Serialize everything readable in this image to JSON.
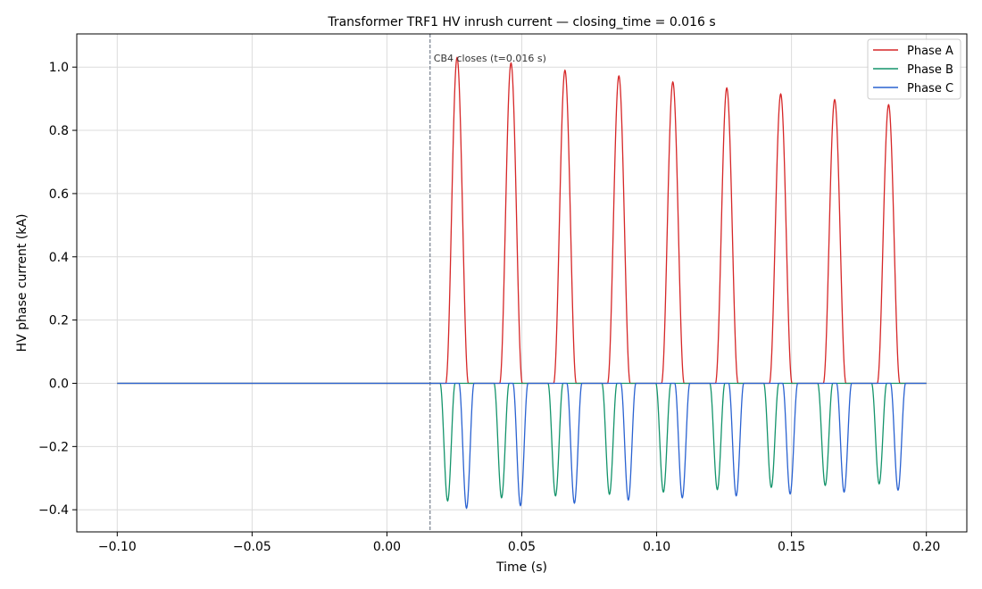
{
  "chart_data": {
    "type": "line",
    "title": "Transformer TRF1 HV inrush current — closing_time = 0.016 s",
    "xlabel": "Time (s)",
    "ylabel": "HV phase current (kA)",
    "xlim": [
      -0.115,
      0.215
    ],
    "ylim": [
      -0.47,
      1.105
    ],
    "xticks": [
      -0.1,
      -0.05,
      0.0,
      0.05,
      0.1,
      0.15,
      0.2
    ],
    "xtick_labels": [
      "−0.10",
      "−0.05",
      "0.00",
      "0.05",
      "0.10",
      "0.15",
      "0.20"
    ],
    "yticks": [
      -0.4,
      -0.2,
      0.0,
      0.2,
      0.4,
      0.6,
      0.8,
      1.0
    ],
    "ytick_labels": [
      "−0.4",
      "−0.2",
      "0.0",
      "0.2",
      "0.4",
      "0.6",
      "0.8",
      "1.0"
    ],
    "grid": true,
    "legend_position": "top-right",
    "x_range": [
      -0.1,
      0.2
    ],
    "switching_time": 0.016,
    "period": 0.02,
    "annotation": {
      "x": 0.016,
      "text": "CB4 closes (t=0.016 s)"
    },
    "series": [
      {
        "name": "Phase A",
        "color": "#d62728",
        "pulse_half_width": 0.0042,
        "pulse_centers": [
          0.026,
          0.046,
          0.066,
          0.086,
          0.106,
          0.126,
          0.146,
          0.166,
          0.186
        ],
        "pulse_peaks": [
          1.03,
          1.013,
          0.99,
          0.972,
          0.953,
          0.934,
          0.915,
          0.897,
          0.881
        ]
      },
      {
        "name": "Phase B",
        "color": "#14946b",
        "pulse_half_width": 0.0028,
        "pulse_centers": [
          0.0225,
          0.0425,
          0.0625,
          0.0825,
          0.1025,
          0.1225,
          0.1425,
          0.1625,
          0.1825
        ],
        "pulse_peaks": [
          -0.372,
          -0.362,
          -0.356,
          -0.351,
          -0.344,
          -0.336,
          -0.329,
          -0.323,
          -0.318
        ]
      },
      {
        "name": "Phase C",
        "color": "#2a62d1",
        "pulse_half_width": 0.0028,
        "pulse_centers": [
          0.0295,
          0.0495,
          0.0695,
          0.0895,
          0.1095,
          0.1295,
          0.1495,
          0.1695,
          0.1895
        ],
        "pulse_peaks": [
          -0.395,
          -0.387,
          -0.379,
          -0.369,
          -0.362,
          -0.356,
          -0.35,
          -0.344,
          -0.338
        ]
      }
    ]
  }
}
